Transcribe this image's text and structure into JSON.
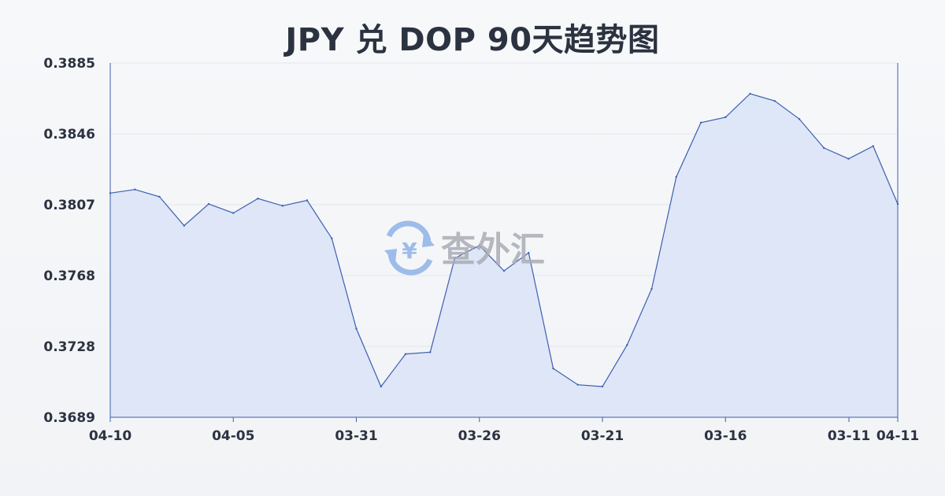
{
  "chart_data": {
    "type": "area",
    "title": "JPY 兑 DOP 90天趋势图",
    "xlabel": "",
    "ylabel": "",
    "ylim": [
      0.3689,
      0.3885
    ],
    "yticks": [
      "0.3885",
      "0.3846",
      "0.3807",
      "0.3768",
      "0.3728",
      "0.3689"
    ],
    "xticks": [
      "04-10",
      "04-05",
      "03-31",
      "03-26",
      "03-21",
      "03-16",
      "03-11",
      "04-11"
    ],
    "grid": true,
    "colors": {
      "line": "#3d5fb0",
      "fill": "#dbe4f6"
    },
    "series": [
      {
        "name": "",
        "values": [
          0.3813,
          0.3815,
          0.3811,
          0.3795,
          0.3807,
          0.3802,
          0.381,
          0.3806,
          0.3809,
          0.3788,
          0.3738,
          0.3706,
          0.3724,
          0.3725,
          0.3777,
          0.3784,
          0.377,
          0.378,
          0.3716,
          0.3707,
          0.3706,
          0.3729,
          0.376,
          0.3822,
          0.3852,
          0.3855,
          0.3868,
          0.3864,
          0.3854,
          0.3838,
          0.3832,
          0.3839,
          0.3807
        ]
      }
    ]
  },
  "watermark": {
    "text": "查外汇",
    "icon": "yen-exchange-icon",
    "color": "#8fb3e8"
  }
}
